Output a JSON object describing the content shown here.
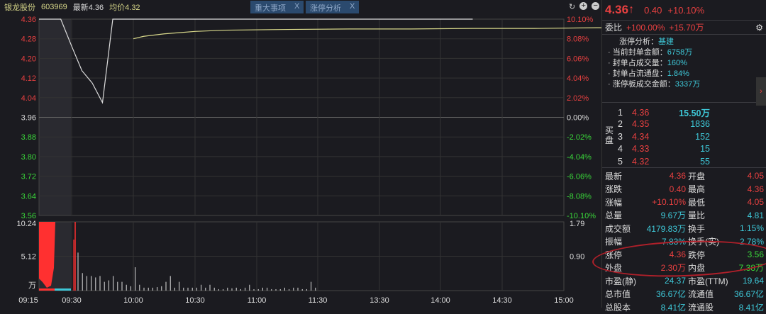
{
  "header": {
    "name": "银龙股份",
    "code": "603969",
    "latest": "最新4.36",
    "avg": "均价4.32"
  },
  "tabs": [
    {
      "label": "重大事项",
      "close": "X"
    },
    {
      "label": "涨停分析",
      "close": "X"
    }
  ],
  "toolbar_icons": [
    "refresh-icon",
    "zoom-in-icon",
    "zoom-out-icon"
  ],
  "quote": {
    "price": "4.36",
    "arrow": "↑",
    "change": "0.40",
    "pct": "+10.10%",
    "weibi_label": "委比",
    "weibi_pct": "+100.00%",
    "weibi_amt": "+15.70万"
  },
  "limit_analysis": {
    "title": "涨停分析：",
    "sector": "基建",
    "items": [
      {
        "label": "当前封单金额：",
        "value": "6758万"
      },
      {
        "label": "封单占成交量：",
        "value": "160%"
      },
      {
        "label": "封单占流通盘：",
        "value": "1.84%"
      },
      {
        "label": "涨停板成交金额：",
        "value": "3337万"
      }
    ]
  },
  "buy_side": {
    "label": "买盘",
    "rows": [
      {
        "n": "1",
        "price": "4.36",
        "vol": "15.50万"
      },
      {
        "n": "2",
        "price": "4.35",
        "vol": "1836"
      },
      {
        "n": "3",
        "price": "4.34",
        "vol": "152"
      },
      {
        "n": "4",
        "price": "4.33",
        "vol": "15"
      },
      {
        "n": "5",
        "price": "4.32",
        "vol": "55"
      }
    ]
  },
  "stats": [
    [
      "最新",
      "4.36",
      "开盘",
      "4.05"
    ],
    [
      "涨跌",
      "0.40",
      "最高",
      "4.36"
    ],
    [
      "涨幅",
      "+10.10%",
      "最低",
      "4.05"
    ],
    [
      "总量",
      "9.67万",
      "量比",
      "4.81"
    ],
    [
      "成交额",
      "4179.83万",
      "换手",
      "1.15%"
    ],
    [
      "振幅",
      "7.83%",
      "换手(实)",
      "2.78%"
    ],
    [
      "涨停",
      "4.36",
      "跌停",
      "3.56"
    ],
    [
      "外盘",
      "2.30万",
      "内盘",
      "7.38万"
    ],
    [
      "市盈(静)",
      "24.37",
      "市盈(TTM)",
      "19.64"
    ],
    [
      "总市值",
      "36.67亿",
      "流通值",
      "36.67亿"
    ],
    [
      "总股本",
      "8.41亿",
      "流通股",
      "8.41亿"
    ]
  ],
  "stat_colors": [
    [
      "red",
      "red"
    ],
    [
      "red",
      "red"
    ],
    [
      "red",
      "red"
    ],
    [
      "cyan",
      "cyan"
    ],
    [
      "cyan",
      "cyan"
    ],
    [
      "cyan",
      "cyan"
    ],
    [
      "red",
      "green"
    ],
    [
      "red",
      "green"
    ],
    [
      "cyan",
      "cyan"
    ],
    [
      "cyan",
      "cyan"
    ],
    [
      "cyan",
      "cyan"
    ]
  ],
  "chart_data": {
    "type": "line",
    "price_ticks": [
      "4.36",
      "4.28",
      "4.20",
      "4.12",
      "4.04",
      "3.96",
      "3.88",
      "3.80",
      "3.72",
      "3.64",
      "3.56"
    ],
    "pct_ticks": [
      "10.10%",
      "8.08%",
      "6.06%",
      "4.04%",
      "2.02%",
      "0.00%",
      "-2.02%",
      "-4.04%",
      "-6.06%",
      "-8.08%",
      "-10.10%"
    ],
    "vol_ticks_left": [
      "10.24",
      "5.12",
      "万"
    ],
    "vol_ticks_right": [
      "1.79",
      "0.90"
    ],
    "time_ticks": [
      "09:15",
      "09:30",
      "10:00",
      "10:30",
      "11:00",
      "11:30",
      "14:00",
      "14:30",
      "15:00"
    ],
    "time_tick_13": "13:30",
    "ylim": [
      3.56,
      4.36
    ],
    "price_series": {
      "t": [
        0,
        10,
        15,
        20,
        25,
        30,
        35,
        40,
        60,
        90,
        120,
        150,
        180,
        210
      ],
      "v": [
        4.36,
        4.36,
        4.25,
        4.15,
        4.1,
        4.02,
        4.36,
        4.36,
        4.36,
        4.36,
        4.36,
        4.36,
        4.36,
        4.36
      ]
    },
    "avg_series": {
      "t": [
        45,
        50,
        60,
        75,
        90,
        120,
        150,
        180,
        210,
        240,
        270,
        300,
        330,
        360
      ],
      "v": [
        4.28,
        4.29,
        4.3,
        4.31,
        4.315,
        4.318,
        4.32,
        4.32,
        4.322,
        4.322,
        4.325,
        4.325,
        4.325,
        4.325
      ]
    },
    "volume": [
      1.3,
      0.6,
      0.5,
      0.5,
      0.45,
      0.5,
      0.3,
      0.35,
      0.5,
      0.3,
      0.3,
      0.2,
      0.15,
      0.8,
      0.2,
      0.1,
      0.1,
      0.1,
      0.12,
      0.15,
      0.3,
      0.5,
      0.1,
      0.3,
      0.1,
      0.1,
      0.1,
      0.1,
      0.2,
      0.1,
      0.2,
      0.1,
      0.05,
      0.05,
      0.1,
      0.08,
      0.1,
      0.05,
      0.1,
      0.2,
      0.05,
      0.05,
      0.1,
      0.1,
      0.05,
      0.05,
      0.05,
      0.1,
      0.05,
      0.1,
      0.1,
      0.05,
      0.05,
      0.3,
      0.1
    ]
  }
}
